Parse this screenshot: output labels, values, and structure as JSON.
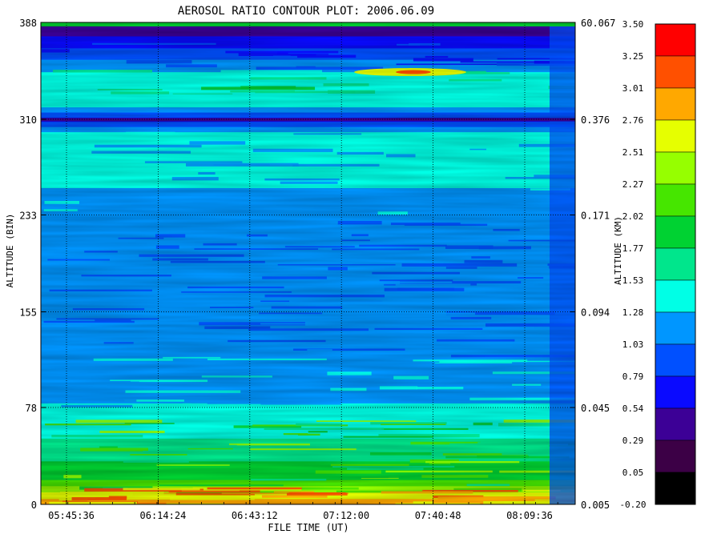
{
  "chart_data": {
    "type": "heatmap",
    "title": "AEROSOL RATIO CONTOUR PLOT:  2006.06.09",
    "xlabel": "FILE TIME (UT)",
    "ylabel_left": "ALTITUDE (BIN)",
    "ylabel_right": "ALTITUDE (KM)",
    "x_ticks": [
      "05:45:36",
      "06:14:24",
      "06:43:12",
      "07:12:00",
      "07:40:48",
      "08:09:36"
    ],
    "y_ticks_left": [
      "0",
      "78",
      "155",
      "233",
      "310",
      "388"
    ],
    "y_ticks_right": [
      "0.005",
      "0.045",
      "0.094",
      "0.171",
      "0.376",
      "60.067"
    ],
    "ylim_bins": [
      0,
      388
    ],
    "grid": true,
    "colorbar_levels": [
      "3.50",
      "3.25",
      "3.01",
      "2.76",
      "2.51",
      "2.27",
      "2.02",
      "1.77",
      "1.53",
      "1.28",
      "1.03",
      "0.79",
      "0.54",
      "0.29",
      "0.05",
      "-0.20"
    ],
    "colorbar_colors": [
      "#ff0000",
      "#ff5000",
      "#ffa800",
      "#e6ff00",
      "#96ff00",
      "#46e600",
      "#00d232",
      "#00e68c",
      "#00ffe6",
      "#0096ff",
      "#0050ff",
      "#0a0aff",
      "#3c0096",
      "#3c0046",
      "#000000"
    ],
    "altitude_profile": [
      {
        "bin": 0,
        "ratio": 3.0
      },
      {
        "bin": 8,
        "ratio": 2.6
      },
      {
        "bin": 20,
        "ratio": 2.0
      },
      {
        "bin": 40,
        "ratio": 1.7
      },
      {
        "bin": 60,
        "ratio": 1.45
      },
      {
        "bin": 78,
        "ratio": 1.3
      },
      {
        "bin": 100,
        "ratio": 1.2
      },
      {
        "bin": 130,
        "ratio": 1.1
      },
      {
        "bin": 155,
        "ratio": 1.05
      },
      {
        "bin": 190,
        "ratio": 1.05
      },
      {
        "bin": 230,
        "ratio": 1.15
      },
      {
        "bin": 260,
        "ratio": 1.3
      },
      {
        "bin": 300,
        "ratio": 1.3
      },
      {
        "bin": 310,
        "ratio": 0.7
      },
      {
        "bin": 320,
        "ratio": 1.3
      },
      {
        "bin": 340,
        "ratio": 1.5
      },
      {
        "bin": 360,
        "ratio": 1.0
      },
      {
        "bin": 375,
        "ratio": 0.6
      },
      {
        "bin": 388,
        "ratio": 0.3
      }
    ]
  }
}
